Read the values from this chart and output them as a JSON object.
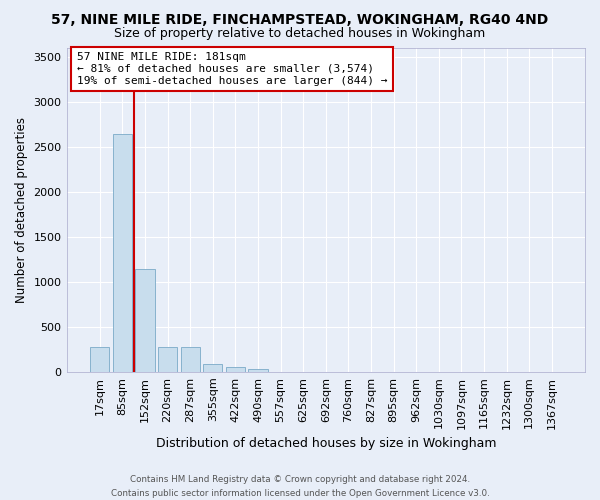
{
  "title": "57, NINE MILE RIDE, FINCHAMPSTEAD, WOKINGHAM, RG40 4ND",
  "subtitle": "Size of property relative to detached houses in Wokingham",
  "xlabel": "Distribution of detached houses by size in Wokingham",
  "ylabel": "Number of detached properties",
  "bar_color": "#c8dded",
  "bar_edge_color": "#7aaac8",
  "background_color": "#e8eef8",
  "grid_color": "#ffffff",
  "categories": [
    "17sqm",
    "85sqm",
    "152sqm",
    "220sqm",
    "287sqm",
    "355sqm",
    "422sqm",
    "490sqm",
    "557sqm",
    "625sqm",
    "692sqm",
    "760sqm",
    "827sqm",
    "895sqm",
    "962sqm",
    "1030sqm",
    "1097sqm",
    "1165sqm",
    "1232sqm",
    "1300sqm",
    "1367sqm"
  ],
  "values": [
    270,
    2640,
    1140,
    280,
    280,
    90,
    55,
    35,
    0,
    0,
    0,
    0,
    0,
    0,
    0,
    0,
    0,
    0,
    0,
    0,
    0
  ],
  "ylim": [
    0,
    3600
  ],
  "yticks": [
    0,
    500,
    1000,
    1500,
    2000,
    2500,
    3000,
    3500
  ],
  "vline_color": "#cc0000",
  "vline_xindex": 1.5,
  "annotation_line1": "57 NINE MILE RIDE: 181sqm",
  "annotation_line2": "← 81% of detached houses are smaller (3,574)",
  "annotation_line3": "19% of semi-detached houses are larger (844) →",
  "annotation_box_color": "#ffffff",
  "annotation_box_edge": "#cc0000",
  "footer_line1": "Contains HM Land Registry data © Crown copyright and database right 2024.",
  "footer_line2": "Contains public sector information licensed under the Open Government Licence v3.0."
}
